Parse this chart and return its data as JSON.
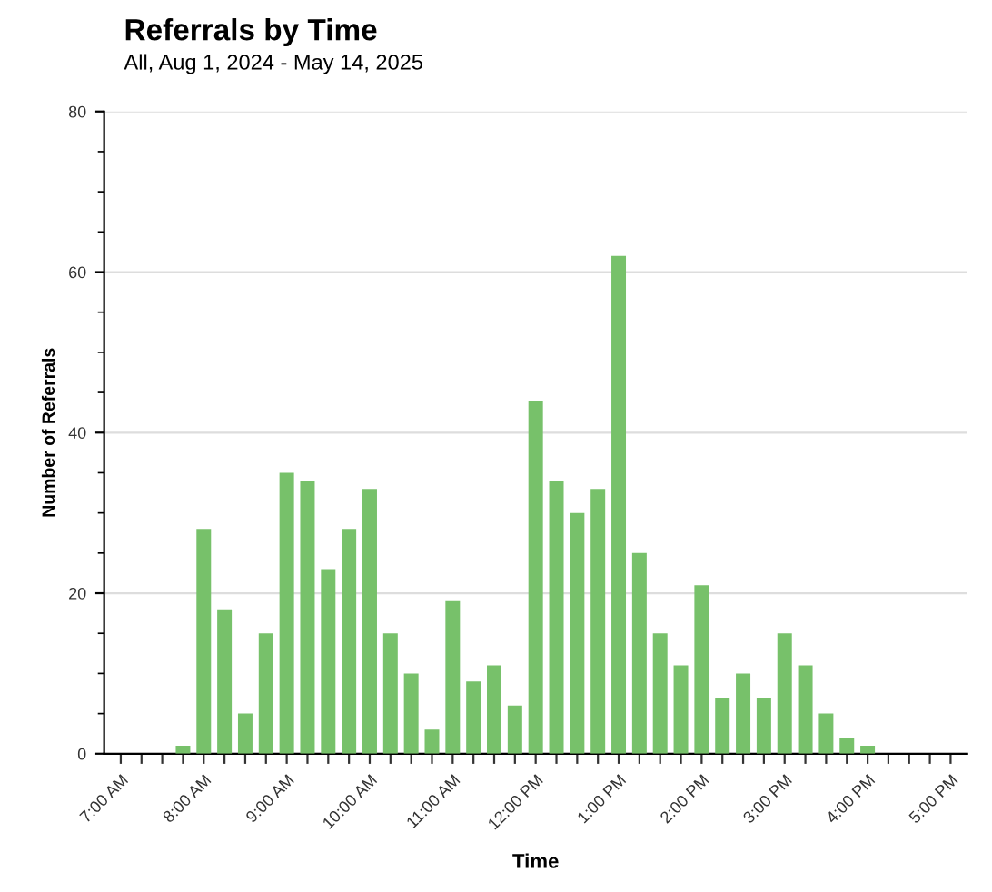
{
  "chart_data": {
    "type": "bar",
    "title": "Referrals by Time",
    "subtitle": "All, Aug 1, 2024 - May 14, 2025",
    "xlabel": "Time",
    "ylabel": "Number of Referrals",
    "categories": [
      "7:00 AM",
      null,
      null,
      null,
      "8:00 AM",
      null,
      null,
      null,
      "9:00 AM",
      null,
      null,
      null,
      "10:00 AM",
      null,
      null,
      null,
      "11:00 AM",
      null,
      null,
      null,
      "12:00 PM",
      null,
      null,
      null,
      "1:00 PM",
      null,
      null,
      null,
      "2:00 PM",
      null,
      null,
      null,
      "3:00 PM",
      null,
      null,
      null,
      "4:00 PM",
      null,
      null,
      null,
      "5:00 PM"
    ],
    "values": [
      0,
      0,
      0,
      1,
      28,
      18,
      5,
      15,
      35,
      34,
      23,
      28,
      33,
      15,
      10,
      3,
      19,
      9,
      11,
      6,
      44,
      34,
      30,
      33,
      62,
      25,
      15,
      11,
      21,
      7,
      10,
      7,
      15,
      11,
      5,
      2,
      1,
      0,
      0,
      0,
      0
    ],
    "color": "#77c16a",
    "ylim": [
      0,
      80
    ],
    "yticks": [
      0,
      20,
      40,
      60,
      80
    ],
    "grid": "y",
    "legend": false
  }
}
